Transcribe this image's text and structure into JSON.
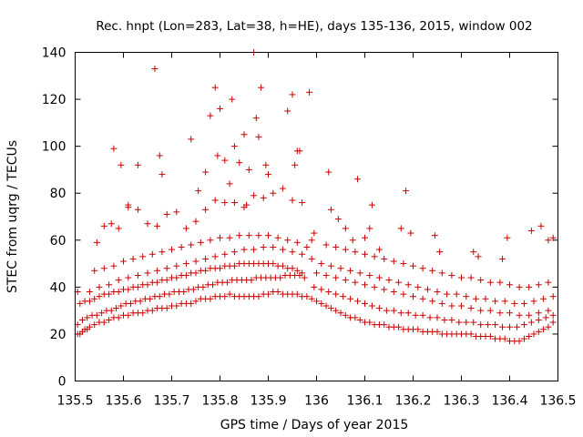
{
  "chart_data": {
    "type": "scatter",
    "title": "Rec. hnpt (Lon=283, Lat=38, h=HE), days 135-136, 2015, window 002",
    "xlabel": "GPS time / Days of year 2015",
    "ylabel": "STEC from uqrg / TECUs",
    "xlim": [
      135.5,
      136.5
    ],
    "ylim": [
      0,
      140
    ],
    "xticks": [
      "135.5",
      "135.6",
      "135.7",
      "135.8",
      "135.9",
      "136",
      "136.1",
      "136.2",
      "136.3",
      "136.4",
      "136.5"
    ],
    "yticks": [
      "0",
      "20",
      "40",
      "60",
      "80",
      "100",
      "120",
      "140"
    ],
    "grid": false,
    "legend": "none",
    "marker": "plus",
    "color": "#cc0000",
    "series": [
      {
        "x": [
          135.505,
          135.51,
          135.515,
          135.52,
          135.525,
          135.53,
          135.54,
          135.55,
          135.56,
          135.57,
          135.58,
          135.59,
          135.6,
          135.61,
          135.62,
          135.63,
          135.64,
          135.65,
          135.66,
          135.67,
          135.68,
          135.69,
          135.7,
          135.71,
          135.72,
          135.73,
          135.74,
          135.75,
          135.76,
          135.77,
          135.78,
          135.79,
          135.8,
          135.81,
          135.82,
          135.83,
          135.84,
          135.85,
          135.86,
          135.87,
          135.88,
          135.89,
          135.9,
          135.91,
          135.92,
          135.93,
          135.94,
          135.95,
          135.96,
          135.97,
          135.98
        ],
        "y": [
          20,
          20,
          21,
          22,
          22,
          23,
          24,
          25,
          25,
          26,
          27,
          27,
          28,
          28,
          29,
          29,
          29,
          30,
          30,
          31,
          31,
          31,
          32,
          32,
          33,
          33,
          33,
          34,
          35,
          35,
          35,
          36,
          36,
          36,
          37,
          36,
          36,
          36,
          36,
          36,
          36,
          37,
          37,
          38,
          38,
          37,
          37,
          37,
          37,
          36,
          36
        ]
      },
      {
        "x": [
          135.505,
          135.515,
          135.525,
          135.535,
          135.545,
          135.555,
          135.565,
          135.575,
          135.585,
          135.595,
          135.605,
          135.615,
          135.625,
          135.635,
          135.645,
          135.655,
          135.665,
          135.675,
          135.685,
          135.695,
          135.705,
          135.715,
          135.725,
          135.735,
          135.745,
          135.755,
          135.765,
          135.775,
          135.785,
          135.795,
          135.805,
          135.815,
          135.825,
          135.835,
          135.845,
          135.855,
          135.865,
          135.875,
          135.885,
          135.895,
          135.905,
          135.915,
          135.925,
          135.935,
          135.945,
          135.955,
          135.965,
          135.975
        ],
        "y": [
          24,
          26,
          27,
          28,
          28,
          29,
          30,
          30,
          31,
          32,
          33,
          33,
          34,
          34,
          35,
          35,
          36,
          36,
          37,
          37,
          38,
          38,
          38,
          39,
          39,
          40,
          40,
          41,
          41,
          42,
          42,
          42,
          43,
          43,
          43,
          43,
          43,
          44,
          44,
          44,
          44,
          44,
          44,
          45,
          45,
          45,
          45,
          44
        ]
      },
      {
        "x": [
          135.51,
          135.52,
          135.53,
          135.54,
          135.55,
          135.56,
          135.57,
          135.58,
          135.59,
          135.6,
          135.61,
          135.62,
          135.63,
          135.64,
          135.65,
          135.66,
          135.67,
          135.68,
          135.69,
          135.7,
          135.71,
          135.72,
          135.73,
          135.74,
          135.75,
          135.76,
          135.77,
          135.78,
          135.79,
          135.8,
          135.81,
          135.82,
          135.83,
          135.84,
          135.85,
          135.86,
          135.87,
          135.88,
          135.89,
          135.9,
          135.91,
          135.92,
          135.93,
          135.94,
          135.95,
          135.96,
          135.97
        ],
        "y": [
          33,
          34,
          34,
          35,
          36,
          37,
          37,
          38,
          38,
          39,
          39,
          40,
          40,
          41,
          41,
          42,
          42,
          43,
          43,
          44,
          44,
          45,
          45,
          46,
          46,
          47,
          47,
          48,
          48,
          48,
          49,
          49,
          49,
          50,
          50,
          50,
          50,
          50,
          50,
          50,
          50,
          49,
          49,
          48,
          48,
          47,
          46
        ]
      },
      {
        "x": [
          135.505,
          135.53,
          135.55,
          135.57,
          135.59,
          135.61,
          135.63,
          135.65,
          135.67,
          135.69,
          135.71,
          135.73,
          135.75,
          135.77,
          135.79,
          135.81,
          135.83,
          135.85,
          135.87,
          135.89,
          135.91,
          135.93,
          135.95,
          135.97
        ],
        "y": [
          38,
          38,
          40,
          41,
          43,
          44,
          45,
          46,
          47,
          48,
          49,
          50,
          51,
          52,
          53,
          54,
          55,
          56,
          56,
          57,
          57,
          56,
          55,
          54
        ]
      },
      {
        "x": [
          135.54,
          135.56,
          135.58,
          135.6,
          135.62,
          135.64,
          135.66,
          135.68,
          135.7,
          135.72,
          135.74,
          135.76,
          135.78,
          135.8,
          135.82,
          135.84,
          135.86,
          135.88,
          135.9,
          135.92,
          135.94,
          135.96,
          135.98
        ],
        "y": [
          47,
          48,
          49,
          51,
          52,
          53,
          54,
          55,
          56,
          57,
          58,
          59,
          60,
          61,
          61,
          62,
          62,
          62,
          62,
          61,
          60,
          59,
          57
        ]
      },
      {
        "x": [
          135.545,
          135.56,
          135.575,
          135.59,
          135.61,
          135.63,
          135.65,
          135.67,
          135.69,
          135.71,
          135.73,
          135.75,
          135.77,
          135.79,
          135.81,
          135.83,
          135.85,
          135.87,
          135.89,
          135.91,
          135.93,
          135.95,
          135.97
        ],
        "y": [
          59,
          66,
          67,
          65,
          74,
          73,
          67,
          66,
          71,
          72,
          65,
          68,
          73,
          77,
          76,
          76,
          74,
          79,
          78,
          80,
          82,
          77,
          76
        ]
      },
      {
        "x": [
          135.58,
          135.595,
          135.61,
          135.63,
          135.665,
          135.675,
          135.68,
          135.74,
          135.755,
          135.77,
          135.78,
          135.79,
          135.795,
          135.8,
          135.81,
          135.82,
          135.825,
          135.83,
          135.84,
          135.85,
          135.855,
          135.86,
          135.87,
          135.875,
          135.88,
          135.885,
          135.895,
          135.9,
          135.94,
          135.95,
          135.955,
          135.96,
          135.965,
          135.985
        ],
        "y": [
          99,
          92,
          75,
          92,
          133,
          96,
          88,
          103,
          81,
          89,
          113,
          125,
          96,
          116,
          94,
          84,
          120,
          100,
          93,
          105,
          75,
          90,
          140,
          112,
          104,
          125,
          92,
          88,
          115,
          122,
          92,
          98,
          98,
          123
        ]
      },
      {
        "x": [
          135.99,
          136.0,
          136.01,
          136.02,
          136.03,
          136.04,
          136.05,
          136.06,
          136.07,
          136.08,
          136.09,
          136.1,
          136.11,
          136.12,
          136.13,
          136.14,
          136.15,
          136.16,
          136.17,
          136.18,
          136.19,
          136.2,
          136.21,
          136.22,
          136.23,
          136.24,
          136.25,
          136.26,
          136.27,
          136.28,
          136.29,
          136.3,
          136.31,
          136.32,
          136.33,
          136.34,
          136.35,
          136.36,
          136.37,
          136.38,
          136.39,
          136.4,
          136.41,
          136.42,
          136.43,
          136.44,
          136.45,
          136.46,
          136.47,
          136.48,
          136.49
        ],
        "y": [
          35,
          34,
          33,
          32,
          31,
          30,
          29,
          28,
          27,
          27,
          26,
          25,
          25,
          24,
          24,
          24,
          23,
          23,
          23,
          22,
          22,
          22,
          22,
          21,
          21,
          21,
          21,
          20,
          20,
          20,
          20,
          20,
          20,
          20,
          19,
          19,
          19,
          19,
          18,
          18,
          18,
          17,
          17,
          17,
          18,
          19,
          20,
          21,
          22,
          23,
          25
        ]
      },
      {
        "x": [
          135.995,
          136.01,
          136.025,
          136.04,
          136.055,
          136.07,
          136.085,
          136.1,
          136.115,
          136.13,
          136.145,
          136.16,
          136.175,
          136.19,
          136.205,
          136.22,
          136.235,
          136.25,
          136.265,
          136.28,
          136.295,
          136.31,
          136.325,
          136.34,
          136.355,
          136.37,
          136.385,
          136.4,
          136.415,
          136.43,
          136.445,
          136.46,
          136.475,
          136.49
        ],
        "y": [
          40,
          39,
          38,
          37,
          36,
          35,
          34,
          33,
          32,
          31,
          30,
          30,
          29,
          29,
          28,
          28,
          27,
          27,
          26,
          26,
          25,
          25,
          25,
          24,
          24,
          24,
          23,
          23,
          23,
          24,
          25,
          26,
          27,
          28
        ]
      },
      {
        "x": [
          136.0,
          136.02,
          136.04,
          136.06,
          136.08,
          136.1,
          136.12,
          136.14,
          136.16,
          136.18,
          136.2,
          136.22,
          136.24,
          136.26,
          136.28,
          136.3,
          136.32,
          136.34,
          136.36,
          136.38,
          136.4,
          136.42,
          136.44,
          136.46,
          136.48
        ],
        "y": [
          46,
          45,
          44,
          43,
          42,
          41,
          40,
          39,
          38,
          37,
          36,
          35,
          34,
          33,
          32,
          32,
          31,
          30,
          30,
          29,
          29,
          28,
          28,
          29,
          30
        ]
      },
      {
        "x": [
          135.99,
          136.01,
          136.03,
          136.05,
          136.07,
          136.09,
          136.11,
          136.13,
          136.15,
          136.17,
          136.19,
          136.21,
          136.23,
          136.25,
          136.27,
          136.29,
          136.31,
          136.33,
          136.35,
          136.37,
          136.39,
          136.41,
          136.43,
          136.45,
          136.47,
          136.49
        ],
        "y": [
          52,
          50,
          49,
          48,
          47,
          46,
          45,
          44,
          43,
          42,
          41,
          40,
          39,
          38,
          37,
          37,
          36,
          35,
          35,
          34,
          34,
          33,
          33,
          34,
          35,
          36
        ]
      },
      {
        "x": [
          135.99,
          136.02,
          136.04,
          136.06,
          136.08,
          136.1,
          136.12,
          136.14,
          136.16,
          136.18,
          136.2,
          136.22,
          136.24,
          136.26,
          136.28,
          136.3,
          136.32,
          136.34,
          136.36,
          136.38,
          136.4,
          136.42,
          136.44,
          136.46,
          136.48
        ],
        "y": [
          60,
          58,
          57,
          56,
          55,
          54,
          53,
          52,
          51,
          50,
          49,
          48,
          47,
          46,
          45,
          44,
          44,
          43,
          42,
          42,
          41,
          40,
          40,
          41,
          42
        ]
      },
      {
        "x": [
          135.995,
          136.025,
          136.03,
          136.045,
          136.06,
          136.075,
          136.085,
          136.1,
          136.11,
          136.115,
          136.13,
          136.175,
          136.185,
          136.195,
          136.245,
          136.255,
          136.325,
          136.335,
          136.385,
          136.395,
          136.445,
          136.465,
          136.48,
          136.49
        ],
        "y": [
          63,
          89,
          73,
          69,
          65,
          60,
          86,
          61,
          65,
          75,
          56,
          65,
          81,
          63,
          62,
          55,
          55,
          53,
          52,
          61,
          64,
          66,
          60,
          61
        ]
      }
    ]
  }
}
